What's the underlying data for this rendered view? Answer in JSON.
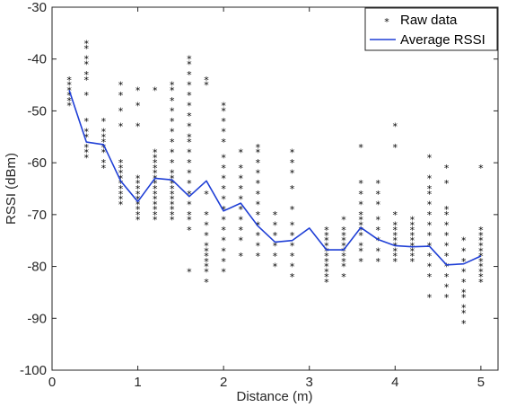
{
  "chart_data": {
    "type": "scatter",
    "xlabel": "Distance (m)",
    "ylabel": "RSSI (dBm)",
    "xlim": [
      0,
      5.2
    ],
    "ylim": [
      -100,
      -30
    ],
    "xticks": [
      0,
      1,
      2,
      3,
      4,
      5
    ],
    "yticks": [
      -100,
      -90,
      -80,
      -70,
      -60,
      -50,
      -40,
      -30
    ],
    "grid": false,
    "legend_position": "top-right",
    "legend": [
      "Raw data",
      "Average RSSI"
    ],
    "marker_symbol": "*",
    "raw_series": {
      "name": "Raw data",
      "color": "#000000",
      "groups": [
        {
          "x": 0.2,
          "y": [
            -44,
            -45,
            -46,
            -47,
            -48,
            -49
          ]
        },
        {
          "x": 0.4,
          "y": [
            -37,
            -38,
            -40,
            -41,
            -43,
            -44,
            -47,
            -52,
            -54,
            -55,
            -57,
            -58,
            -59
          ]
        },
        {
          "x": 0.6,
          "y": [
            -52,
            -54,
            -55,
            -56,
            -57,
            -58,
            -60,
            -61
          ]
        },
        {
          "x": 0.8,
          "y": [
            -45,
            -47,
            -50,
            -53,
            -60,
            -61,
            -62,
            -63,
            -64,
            -65,
            -66,
            -67,
            -68
          ]
        },
        {
          "x": 1.0,
          "y": [
            -46,
            -49,
            -53,
            -63,
            -64,
            -65,
            -66,
            -67,
            -68,
            -69,
            -70,
            -71
          ]
        },
        {
          "x": 1.2,
          "y": [
            -46,
            -58,
            -59,
            -60,
            -61,
            -62,
            -63,
            -64,
            -65,
            -66,
            -67,
            -68,
            -69,
            -70,
            -71
          ]
        },
        {
          "x": 1.4,
          "y": [
            -45,
            -46,
            -48,
            -50,
            -52,
            -54,
            -56,
            -58,
            -60,
            -62,
            -63,
            -64,
            -65,
            -66,
            -67,
            -68,
            -69,
            -70,
            -71
          ]
        },
        {
          "x": 1.6,
          "y": [
            -40,
            -41,
            -43,
            -45,
            -47,
            -49,
            -51,
            -53,
            -55,
            -56,
            -58,
            -60,
            -62,
            -64,
            -66,
            -68,
            -70,
            -71,
            -73,
            -81
          ]
        },
        {
          "x": 1.8,
          "y": [
            -44,
            -45,
            -66,
            -70,
            -72,
            -74,
            -76,
            -77,
            -78,
            -79,
            -80,
            -81,
            -83
          ]
        },
        {
          "x": 2.0,
          "y": [
            -49,
            -50,
            -52,
            -54,
            -56,
            -59,
            -61,
            -63,
            -65,
            -67,
            -69,
            -71,
            -73,
            -75,
            -77,
            -79,
            -81
          ]
        },
        {
          "x": 2.2,
          "y": [
            -58,
            -61,
            -63,
            -65,
            -67,
            -69,
            -71,
            -73,
            -75,
            -78
          ]
        },
        {
          "x": 2.4,
          "y": [
            -57,
            -58,
            -60,
            -62,
            -64,
            -66,
            -68,
            -70,
            -72,
            -74,
            -76,
            -78
          ]
        },
        {
          "x": 2.6,
          "y": [
            -70,
            -72,
            -74,
            -76,
            -78,
            -80
          ]
        },
        {
          "x": 2.8,
          "y": [
            -58,
            -60,
            -62,
            -65,
            -69,
            -72,
            -74,
            -76,
            -78,
            -80,
            -82
          ]
        },
        {
          "x": 3.2,
          "y": [
            -73,
            -74,
            -75,
            -76,
            -77,
            -78,
            -79,
            -80,
            -81,
            -82,
            -83
          ]
        },
        {
          "x": 3.4,
          "y": [
            -71,
            -73,
            -74,
            -75,
            -76,
            -77,
            -78,
            -79,
            -80,
            -82
          ]
        },
        {
          "x": 3.6,
          "y": [
            -57,
            -64,
            -66,
            -68,
            -70,
            -71,
            -72,
            -73,
            -74,
            -76,
            -77,
            -79
          ]
        },
        {
          "x": 3.8,
          "y": [
            -64,
            -66,
            -68,
            -71,
            -73,
            -75,
            -77,
            -79
          ]
        },
        {
          "x": 4.0,
          "y": [
            -53,
            -57,
            -70,
            -72,
            -73,
            -74,
            -75,
            -76,
            -77,
            -78,
            -79
          ]
        },
        {
          "x": 4.2,
          "y": [
            -71,
            -72,
            -73,
            -74,
            -75,
            -76,
            -77,
            -78,
            -79
          ]
        },
        {
          "x": 4.4,
          "y": [
            -59,
            -63,
            -65,
            -66,
            -68,
            -70,
            -72,
            -74,
            -76,
            -78,
            -80,
            -82,
            -86
          ]
        },
        {
          "x": 4.6,
          "y": [
            -61,
            -64,
            -69,
            -70,
            -72,
            -74,
            -76,
            -78,
            -80,
            -82,
            -84,
            -86
          ]
        },
        {
          "x": 4.8,
          "y": [
            -75,
            -77,
            -79,
            -81,
            -83,
            -85,
            -86,
            -88,
            -89,
            -91
          ]
        },
        {
          "x": 5.0,
          "y": [
            -61,
            -73,
            -74,
            -75,
            -76,
            -77,
            -78,
            -79,
            -80,
            -81,
            -82,
            -83
          ]
        }
      ]
    },
    "average_series": {
      "name": "Average RSSI",
      "color": "#1f3fd6",
      "x": [
        0.2,
        0.4,
        0.6,
        0.8,
        1.0,
        1.2,
        1.4,
        1.6,
        1.8,
        2.0,
        2.2,
        2.4,
        2.6,
        2.8,
        3.0,
        3.2,
        3.4,
        3.6,
        3.8,
        4.0,
        4.2,
        4.4,
        4.6,
        4.8,
        5.0
      ],
      "y": [
        -46,
        -56,
        -56.5,
        -63.5,
        -67.5,
        -63,
        -63.3,
        -66.5,
        -63.5,
        -69.3,
        -67.8,
        -72.2,
        -75.3,
        -75,
        -72.6,
        -76.8,
        -76.8,
        -72.5,
        -74.8,
        -76,
        -76.2,
        -76.1,
        -79.7,
        -79.5,
        -78
      ]
    }
  }
}
